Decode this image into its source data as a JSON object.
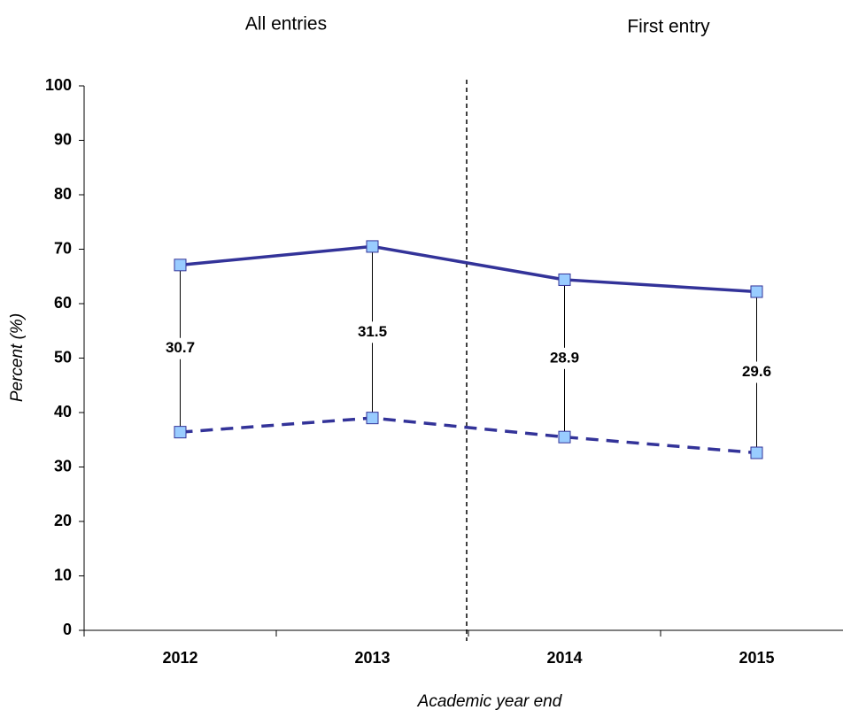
{
  "chart_data": {
    "type": "line",
    "annotations": [
      "All entries",
      "First entry"
    ],
    "x_label": "Academic year end",
    "y_label": "Percent (%)",
    "categories": [
      "2012",
      "2013",
      "2014",
      "2015"
    ],
    "series": [
      {
        "color": "#333399",
        "line_style": "solid",
        "values": [
          67.1,
          70.5,
          64.4,
          62.2
        ]
      },
      {
        "color": "#333399",
        "line_style": "dashed",
        "values": [
          36.4,
          39.0,
          35.5,
          32.6
        ]
      }
    ],
    "differences": [
      30.7,
      31.5,
      28.9,
      29.6
    ],
    "marker_color": "#99ccff",
    "ylim": [
      0,
      100
    ],
    "yticks": [
      0,
      10,
      20,
      30,
      40,
      50,
      60,
      70,
      80,
      90,
      100
    ]
  }
}
